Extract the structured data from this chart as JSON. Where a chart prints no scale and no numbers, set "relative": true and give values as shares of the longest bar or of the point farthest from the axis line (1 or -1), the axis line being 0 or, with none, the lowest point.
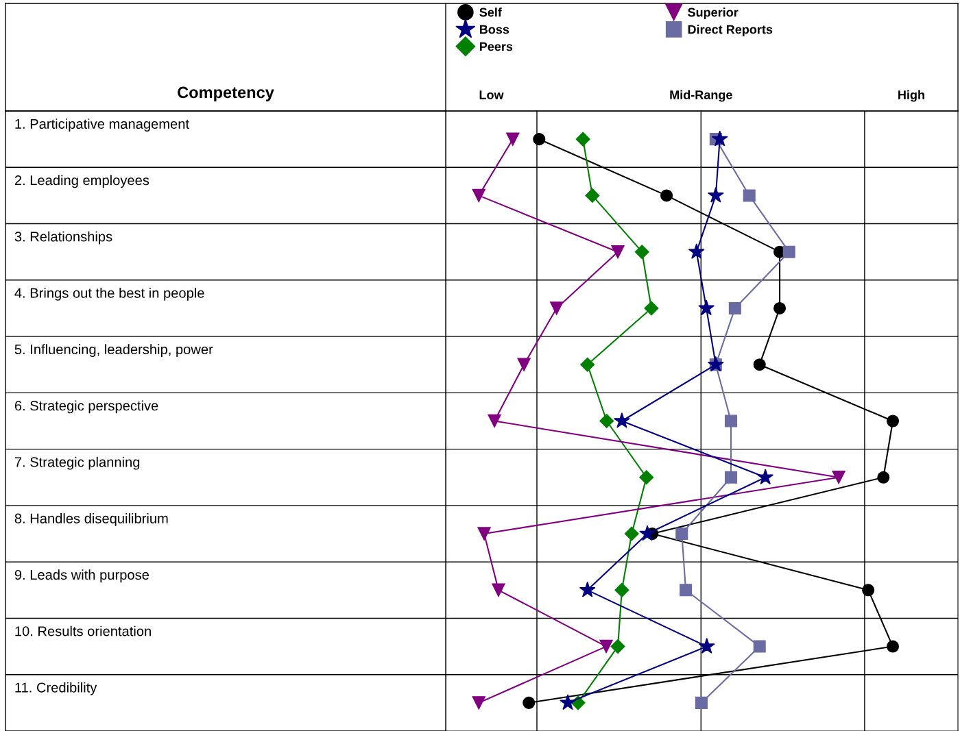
{
  "chart_data": {
    "type": "line",
    "orientation": "horizontal",
    "relative": true,
    "ylabel": "Competency",
    "legend": "top",
    "categories": [
      "1. Participative management",
      "2. Leading employees",
      "3. Relationships",
      "4. Brings out the best in people",
      "5. Influencing, leadership, power",
      "6. Strategic perspective",
      "7. Strategic planning",
      "8. Handles disequilibrium",
      "9. Leads with purpose",
      "10. Results orientation",
      "11. Credibility"
    ],
    "series": [
      {
        "name": "Self",
        "color": "#000000",
        "marker": "circle",
        "values": [
          0.209,
          0.494,
          0.747,
          0.747,
          0.702,
          1.0,
          0.979,
          0.462,
          0.945,
          1.0,
          0.186
        ]
      },
      {
        "name": "Boss",
        "color": "#000080",
        "marker": "star",
        "values": [
          0.613,
          0.604,
          0.561,
          0.583,
          0.604,
          0.394,
          0.715,
          0.451,
          0.317,
          0.584,
          0.273
        ]
      },
      {
        "name": "Peers",
        "color": "#008000",
        "marker": "diamond",
        "values": [
          0.307,
          0.328,
          0.439,
          0.46,
          0.317,
          0.36,
          0.449,
          0.416,
          0.394,
          0.385,
          0.296
        ]
      },
      {
        "name": "Superior",
        "color": "#800080",
        "marker": "triangle",
        "values": [
          0.15,
          0.074,
          0.385,
          0.248,
          0.175,
          0.109,
          0.879,
          0.086,
          0.118,
          0.359,
          0.074
        ]
      },
      {
        "name": "Direct Reports",
        "color": "#6b6ba3",
        "marker": "square",
        "values": [
          0.604,
          0.679,
          0.768,
          0.647,
          0.604,
          0.638,
          0.638,
          0.528,
          0.537,
          0.702,
          0.572
        ]
      }
    ],
    "ref_lines": [
      {
        "axis": "x",
        "value": 0.204,
        "color": "#000000"
      },
      {
        "axis": "x",
        "value": 0.571,
        "color": "#000000"
      },
      {
        "axis": "x",
        "value": 0.937,
        "color": "#000000"
      }
    ],
    "annotations": [
      "Low",
      "Mid-Range",
      "High"
    ]
  }
}
